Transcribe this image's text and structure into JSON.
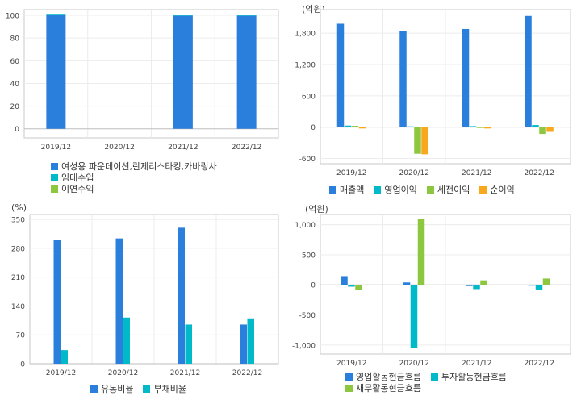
{
  "colors": {
    "blue": "#2b7fdc",
    "teal": "#00b9c9",
    "green": "#8dc63f",
    "orange": "#f8a81c"
  },
  "chart_data": [
    {
      "id": "c1",
      "type": "bar",
      "unit": "",
      "categories": [
        "2019/12",
        "2020/12",
        "2021/12",
        "2022/12"
      ],
      "ylim": [
        -8,
        105
      ],
      "yticks": [
        0,
        20,
        40,
        60,
        80,
        100
      ],
      "ytick_labels": [
        "0",
        "20",
        "40",
        "60",
        "80",
        "100"
      ],
      "stacked": true,
      "series": [
        {
          "name": "여성용 파운데이션,란제리스타킹,카바링사",
          "color": "#2b7fdc",
          "values": [
            100.5,
            null,
            99.6,
            99.6
          ]
        },
        {
          "name": "임대수입",
          "color": "#00b9c9",
          "values": [
            0.8,
            null,
            1.0,
            1.0
          ]
        },
        {
          "name": "이연수익",
          "color": "#8dc63f",
          "values": [
            0,
            null,
            0,
            0
          ]
        }
      ]
    },
    {
      "id": "c2",
      "type": "bar",
      "unit": "(억원)",
      "categories": [
        "2019/12",
        "2020/12",
        "2021/12",
        "2022/12"
      ],
      "ylim": [
        -700,
        2250
      ],
      "yticks": [
        -600,
        0,
        600,
        1200,
        1800
      ],
      "ytick_labels": [
        "-600",
        "0",
        "600",
        "1,200",
        "1,800"
      ],
      "series": [
        {
          "name": "매출액",
          "color": "#2b7fdc",
          "values": [
            1980,
            1840,
            1880,
            2130
          ]
        },
        {
          "name": "영업이익",
          "color": "#00b9c9",
          "values": [
            30,
            15,
            20,
            40
          ]
        },
        {
          "name": "세전이익",
          "color": "#8dc63f",
          "values": [
            25,
            -510,
            -10,
            -130
          ]
        },
        {
          "name": "순이익",
          "color": "#f8a81c",
          "values": [
            -25,
            -520,
            -25,
            -90
          ]
        }
      ]
    },
    {
      "id": "c3",
      "type": "bar",
      "unit": "(%)",
      "categories": [
        "2019/12",
        "2020/12",
        "2021/12",
        "2022/12"
      ],
      "ylim": [
        0,
        362
      ],
      "yticks": [
        0,
        70,
        140,
        210,
        280,
        350
      ],
      "ytick_labels": [
        "0",
        "70",
        "140",
        "210",
        "280",
        "350"
      ],
      "series": [
        {
          "name": "유동비율",
          "color": "#2b7fdc",
          "values": [
            300,
            304,
            330,
            95
          ]
        },
        {
          "name": "부채비율",
          "color": "#00b9c9",
          "values": [
            33,
            112,
            95,
            110
          ]
        }
      ]
    },
    {
      "id": "c4",
      "type": "bar",
      "unit": "(억원)",
      "categories": [
        "2019/12",
        "2020/12",
        "2021/12",
        "2022/12"
      ],
      "ylim": [
        -1150,
        1170
      ],
      "yticks": [
        -1000,
        -500,
        0,
        500,
        1000
      ],
      "ytick_labels": [
        "-1,000",
        "-500",
        "0",
        "500",
        "1,000"
      ],
      "series": [
        {
          "name": "영업활동현금흐름",
          "color": "#2b7fdc",
          "values": [
            145,
            40,
            -20,
            -10
          ]
        },
        {
          "name": "투자활동현금흐름",
          "color": "#00b9c9",
          "values": [
            -30,
            -1050,
            -70,
            -80
          ]
        },
        {
          "name": "재무활동현금흐름",
          "color": "#8dc63f",
          "values": [
            -80,
            1100,
            75,
            105
          ]
        }
      ]
    }
  ]
}
